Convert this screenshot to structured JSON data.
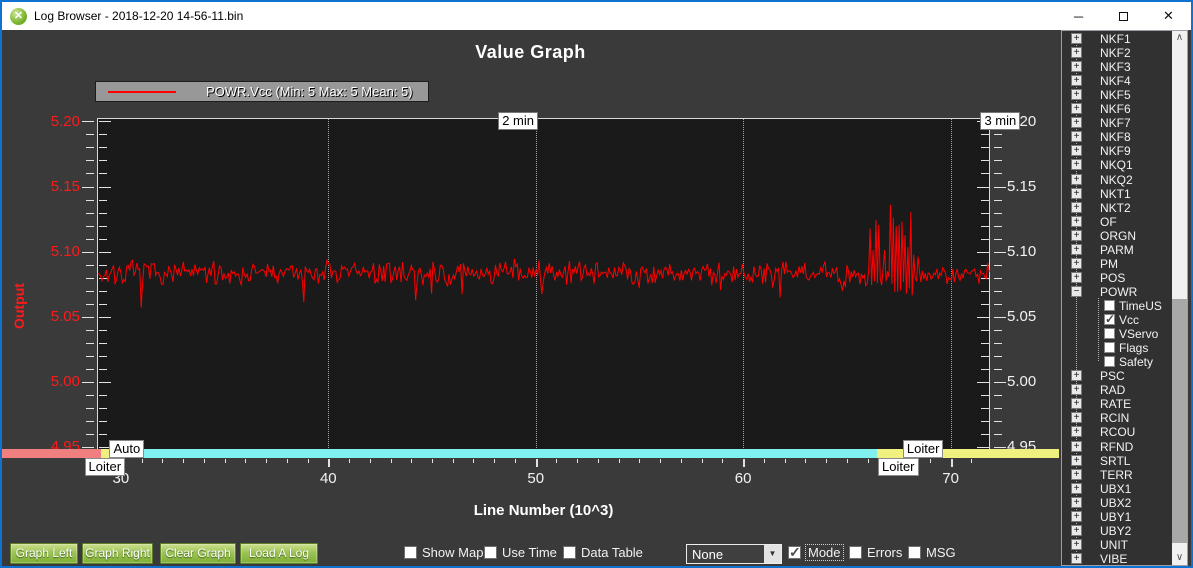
{
  "window": {
    "title": "Log Browser - 2018-12-20 14-56-11.bin",
    "icon_glyph": "✕",
    "controls": {
      "minimize": "─",
      "close": "✕"
    }
  },
  "colors": {
    "window_border": "#1072d0",
    "trace": "#ff0000",
    "axis_left_text": "#ff1a1a",
    "axis_right_text": "#f2f2f2",
    "button_green": "#9cc456",
    "mode_salmon": "#f08080",
    "mode_yellow": "#f0f080",
    "mode_cyan": "#80f0f0"
  },
  "chart_data": {
    "type": "line",
    "title": "Value Graph",
    "series": [
      {
        "name": "POWR.Vcc",
        "legend": "POWR.Vcc (Min: 5 Max: 5 Mean: 5)",
        "color": "#ff0000",
        "stats": {
          "min": 5,
          "max": 5,
          "mean": 5
        }
      }
    ],
    "xlabel": "Line Number (10^3)",
    "ylabel_left": "Output",
    "x_ticks": [
      30,
      40,
      50,
      60,
      70
    ],
    "x_minor_from": 29,
    "x_minor_to": 71,
    "x_range": [
      28.85,
      71.9
    ],
    "y_ticks": [
      5.2,
      5.15,
      5.1,
      5.05,
      5.0,
      4.95
    ],
    "y_tick_labels": [
      "5.20",
      "5.15",
      "5.10",
      "5.05",
      "5.00",
      "4.95"
    ],
    "y_minor_step": 0.01,
    "y_range": [
      4.948,
      5.203
    ],
    "grid_x_dotted": [
      40,
      50,
      60,
      70
    ],
    "trace": {
      "baseline": 5.084,
      "noise": 0.009,
      "dip_chance": 0.05,
      "dip_depth": 0.02,
      "spike": {
        "from": 66.0,
        "to": 68.3,
        "top": 5.137,
        "base": 5.095
      },
      "seed": 7,
      "step": 0.07
    },
    "time_markers": [
      {
        "label": "2 min",
        "x": 49.3
      },
      {
        "label": "3 min",
        "x": 72.55
      }
    ],
    "mode_segments": [
      {
        "mode": "Loiter",
        "color": "#f08080",
        "from": 24.0,
        "to": 29.05
      },
      {
        "mode": "Loiter",
        "color": "#f0f080",
        "from": 29.05,
        "to": 29.65
      },
      {
        "mode": "Auto",
        "color": "#80f0f0",
        "from": 29.65,
        "to": 66.45
      },
      {
        "mode": "Loiter",
        "color": "#f0f080",
        "from": 66.45,
        "to": 76.0
      }
    ],
    "mode_labels": [
      {
        "text": "Auto",
        "x": 29.45,
        "row": "upper"
      },
      {
        "text": "Loiter",
        "x": 28.25,
        "row": "lower"
      },
      {
        "text": "Loiter",
        "x": 67.7,
        "row": "upper"
      },
      {
        "text": "Loiter",
        "x": 66.5,
        "row": "lower"
      }
    ]
  },
  "toolbar": {
    "buttons": [
      {
        "label": "Graph Left"
      },
      {
        "label": "Graph Right"
      },
      {
        "label": "Clear Graph"
      },
      {
        "label": "Load A Log"
      }
    ],
    "checks_left": [
      {
        "label": "Show Map",
        "checked": false
      },
      {
        "label": "Use Time",
        "checked": false
      },
      {
        "label": "Data Table",
        "checked": false
      }
    ],
    "combo": {
      "value": "None",
      "arrow": "▼"
    },
    "checks_right": [
      {
        "label": "Mode",
        "checked": true,
        "focused": true
      },
      {
        "label": "Errors",
        "checked": false,
        "focused": false
      },
      {
        "label": "MSG",
        "checked": false,
        "focused": false
      }
    ]
  },
  "sidebar": {
    "items": [
      {
        "label": "NKF1",
        "type": "root"
      },
      {
        "label": "NKF2",
        "type": "root"
      },
      {
        "label": "NKF3",
        "type": "root"
      },
      {
        "label": "NKF4",
        "type": "root"
      },
      {
        "label": "NKF5",
        "type": "root"
      },
      {
        "label": "NKF6",
        "type": "root"
      },
      {
        "label": "NKF7",
        "type": "root"
      },
      {
        "label": "NKF8",
        "type": "root"
      },
      {
        "label": "NKF9",
        "type": "root"
      },
      {
        "label": "NKQ1",
        "type": "root"
      },
      {
        "label": "NKQ2",
        "type": "root"
      },
      {
        "label": "NKT1",
        "type": "root"
      },
      {
        "label": "NKT2",
        "type": "root"
      },
      {
        "label": "OF",
        "type": "root"
      },
      {
        "label": "ORGN",
        "type": "root"
      },
      {
        "label": "PARM",
        "type": "root"
      },
      {
        "label": "PM",
        "type": "root"
      },
      {
        "label": "POS",
        "type": "root"
      },
      {
        "label": "POWR",
        "type": "expanded"
      },
      {
        "label": "TimeUS",
        "type": "child",
        "checked": false
      },
      {
        "label": "Vcc",
        "type": "child",
        "checked": true
      },
      {
        "label": "VServo",
        "type": "child",
        "checked": false
      },
      {
        "label": "Flags",
        "type": "child",
        "checked": false
      },
      {
        "label": "Safety",
        "type": "child",
        "checked": false
      },
      {
        "label": "PSC",
        "type": "root"
      },
      {
        "label": "RAD",
        "type": "root"
      },
      {
        "label": "RATE",
        "type": "root"
      },
      {
        "label": "RCIN",
        "type": "root"
      },
      {
        "label": "RCOU",
        "type": "root"
      },
      {
        "label": "RFND",
        "type": "root"
      },
      {
        "label": "SRTL",
        "type": "root"
      },
      {
        "label": "TERR",
        "type": "root"
      },
      {
        "label": "UBX1",
        "type": "root"
      },
      {
        "label": "UBX2",
        "type": "root"
      },
      {
        "label": "UBY1",
        "type": "root"
      },
      {
        "label": "UBY2",
        "type": "root"
      },
      {
        "label": "UNIT",
        "type": "root"
      },
      {
        "label": "VIBE",
        "type": "root"
      }
    ],
    "scrollbar": {
      "up_glyph": "∧",
      "down_glyph": "∨"
    }
  }
}
